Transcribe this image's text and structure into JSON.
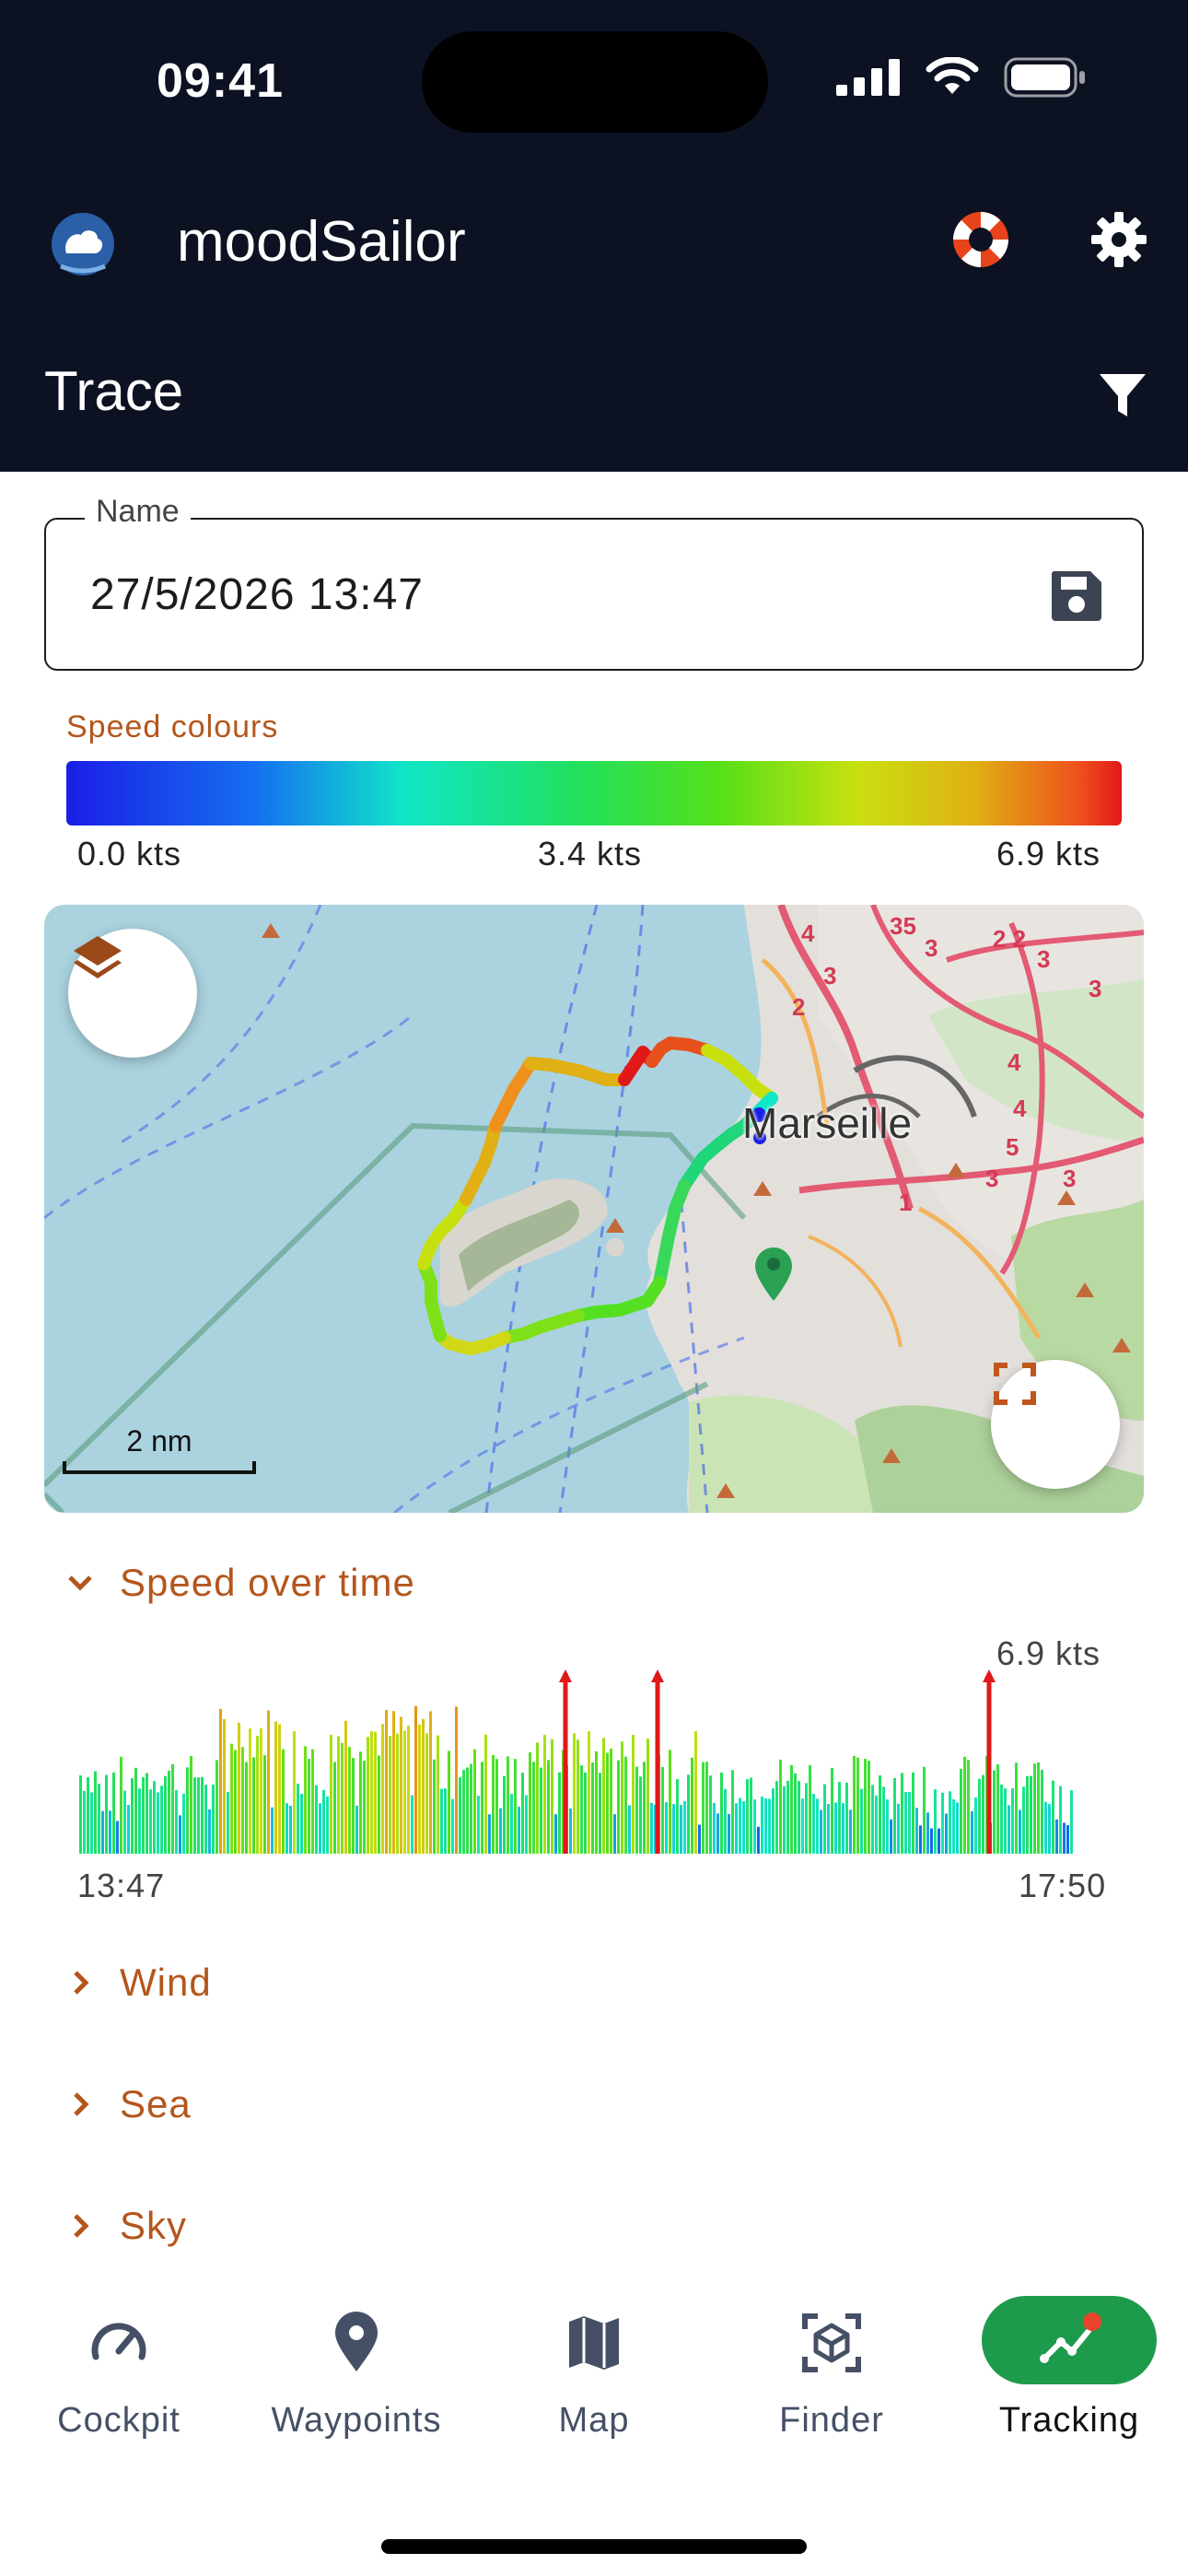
{
  "status_bar": {
    "time": "09:41"
  },
  "app_bar": {
    "title": "moodSailor"
  },
  "sub_bar": {
    "title": "Trace"
  },
  "name_field": {
    "label": "Name",
    "value": "27/5/2026 13:47"
  },
  "speed_legend": {
    "title": "Speed colours",
    "min": "0.0 kts",
    "mid": "3.4 kts",
    "max": "6.9 kts"
  },
  "map": {
    "city_label": "Marseille",
    "scale_label": "2 nm"
  },
  "sections": {
    "speed_over_time": "Speed over time",
    "wind": "Wind",
    "sea": "Sea",
    "sky": "Sky"
  },
  "speed_chart": {
    "max_label": "6.9 kts",
    "start_time": "13:47",
    "end_time": "17:50"
  },
  "nav": {
    "cockpit": "Cockpit",
    "waypoints": "Waypoints",
    "map": "Map",
    "finder": "Finder",
    "tracking": "Tracking"
  },
  "colors": {
    "accent": "#b4561c",
    "bar": "#0c1222",
    "active_nav": "#1e9a4c",
    "nav_text": "#455066"
  }
}
